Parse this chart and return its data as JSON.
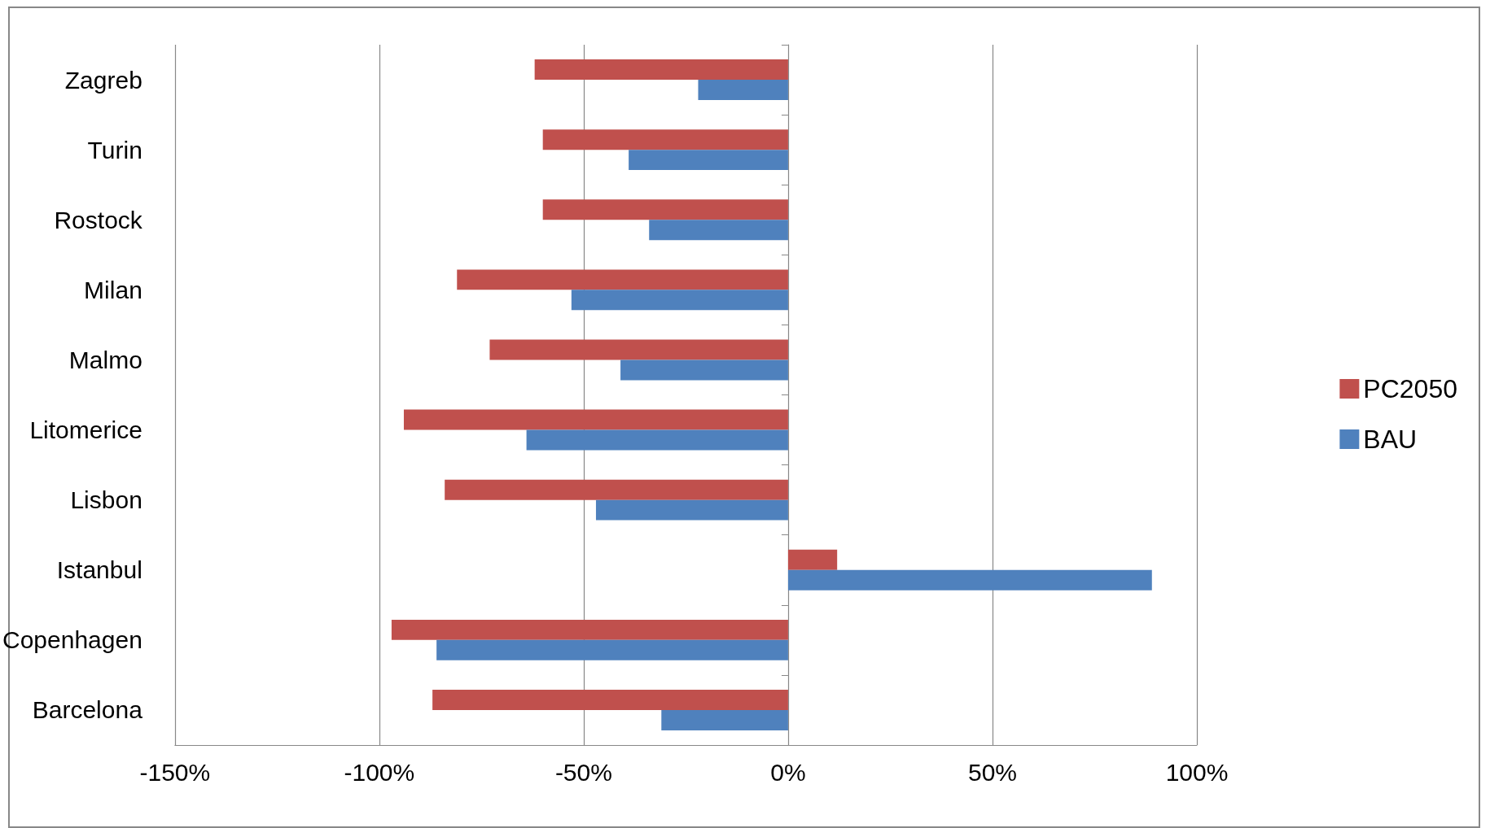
{
  "chart_data": {
    "type": "bar",
    "orientation": "horizontal",
    "categories": [
      "Zagreb",
      "Turin",
      "Rostock",
      "Milan",
      "Malmo",
      "Litomerice",
      "Lisbon",
      "Istanbul",
      "Copenhagen",
      "Barcelona"
    ],
    "series": [
      {
        "name": "PC2050",
        "color": "#c0504d",
        "values": [
          -62,
          -60,
          -60,
          -81,
          -73,
          -94,
          -84,
          12,
          -97,
          -87
        ]
      },
      {
        "name": "BAU",
        "color": "#4f81bd",
        "values": [
          -22,
          -39,
          -34,
          -53,
          -41,
          -64,
          -47,
          89,
          -86,
          -31
        ]
      }
    ],
    "xlim": [
      -150,
      100
    ],
    "xticks": [
      {
        "value": -150,
        "label": "-150%"
      },
      {
        "value": -100,
        "label": "-100%"
      },
      {
        "value": -50,
        "label": "-50%"
      },
      {
        "value": 0,
        "label": "0%"
      },
      {
        "value": 50,
        "label": "50%"
      },
      {
        "value": 100,
        "label": "100%"
      }
    ],
    "grid": "x",
    "legend": "right"
  }
}
